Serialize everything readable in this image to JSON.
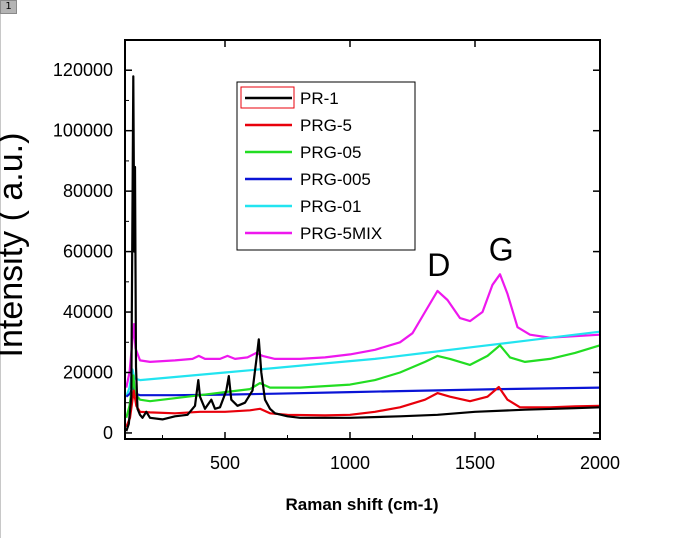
{
  "page_tab": "1",
  "chart_data": {
    "type": "line",
    "title": "",
    "xlabel": "Raman shift (cm-1)",
    "ylabel": "Intensity ( a.u.)",
    "xlim": [
      100,
      2000
    ],
    "ylim": [
      -2000,
      130000
    ],
    "xticks": [
      500,
      1000,
      1500,
      2000
    ],
    "yticks": [
      0,
      20000,
      40000,
      60000,
      80000,
      100000,
      120000
    ],
    "grid": false,
    "legend_position": "top-center",
    "annotations": [
      {
        "text": "D",
        "x": 1355,
        "y": 52000
      },
      {
        "text": "G",
        "x": 1605,
        "y": 57000
      }
    ],
    "series": [
      {
        "name": "PR-1",
        "color": "#000000",
        "points": [
          [
            105,
            600
          ],
          [
            115,
            3000
          ],
          [
            125,
            12000
          ],
          [
            133,
            118000
          ],
          [
            137,
            60000
          ],
          [
            140,
            88000
          ],
          [
            144,
            22000
          ],
          [
            150,
            8000
          ],
          [
            160,
            6000
          ],
          [
            170,
            5000
          ],
          [
            185,
            7000
          ],
          [
            200,
            5000
          ],
          [
            250,
            4500
          ],
          [
            300,
            5500
          ],
          [
            350,
            6000
          ],
          [
            380,
            9000
          ],
          [
            393,
            17500
          ],
          [
            400,
            12000
          ],
          [
            420,
            8000
          ],
          [
            445,
            11000
          ],
          [
            460,
            8000
          ],
          [
            480,
            8500
          ],
          [
            505,
            14000
          ],
          [
            515,
            18800
          ],
          [
            525,
            11000
          ],
          [
            550,
            9000
          ],
          [
            580,
            10000
          ],
          [
            610,
            14000
          ],
          [
            625,
            24000
          ],
          [
            635,
            31000
          ],
          [
            645,
            20000
          ],
          [
            660,
            11000
          ],
          [
            680,
            8000
          ],
          [
            700,
            6500
          ],
          [
            750,
            5500
          ],
          [
            800,
            5000
          ],
          [
            1000,
            5000
          ],
          [
            1200,
            5500
          ],
          [
            1350,
            6000
          ],
          [
            1500,
            7000
          ],
          [
            1700,
            7700
          ],
          [
            1900,
            8200
          ],
          [
            2000,
            8500
          ]
        ]
      },
      {
        "name": "PRG-5",
        "color": "#e8000b",
        "points": [
          [
            105,
            2000
          ],
          [
            120,
            5000
          ],
          [
            130,
            11000
          ],
          [
            135,
            14000
          ],
          [
            145,
            9000
          ],
          [
            160,
            7000
          ],
          [
            200,
            6800
          ],
          [
            300,
            6500
          ],
          [
            400,
            7000
          ],
          [
            500,
            7000
          ],
          [
            600,
            7500
          ],
          [
            640,
            8000
          ],
          [
            680,
            6500
          ],
          [
            750,
            6000
          ],
          [
            900,
            5800
          ],
          [
            1000,
            6000
          ],
          [
            1100,
            7000
          ],
          [
            1200,
            8500
          ],
          [
            1300,
            11000
          ],
          [
            1350,
            13200
          ],
          [
            1400,
            12000
          ],
          [
            1480,
            10500
          ],
          [
            1550,
            12000
          ],
          [
            1595,
            15200
          ],
          [
            1630,
            11000
          ],
          [
            1680,
            8500
          ],
          [
            1800,
            8500
          ],
          [
            1900,
            8800
          ],
          [
            2000,
            9000
          ]
        ]
      },
      {
        "name": "PRG-05",
        "color": "#22dd22",
        "points": [
          [
            105,
            5000
          ],
          [
            118,
            9000
          ],
          [
            128,
            15000
          ],
          [
            133,
            19000
          ],
          [
            140,
            13000
          ],
          [
            160,
            11000
          ],
          [
            200,
            10500
          ],
          [
            300,
            11500
          ],
          [
            400,
            12500
          ],
          [
            500,
            13500
          ],
          [
            600,
            14500
          ],
          [
            640,
            16500
          ],
          [
            680,
            15000
          ],
          [
            800,
            15000
          ],
          [
            1000,
            16000
          ],
          [
            1100,
            17500
          ],
          [
            1200,
            20000
          ],
          [
            1300,
            23500
          ],
          [
            1350,
            25500
          ],
          [
            1400,
            24500
          ],
          [
            1480,
            22500
          ],
          [
            1550,
            25500
          ],
          [
            1600,
            29000
          ],
          [
            1640,
            25000
          ],
          [
            1700,
            23500
          ],
          [
            1800,
            24500
          ],
          [
            1900,
            26500
          ],
          [
            2000,
            29000
          ]
        ]
      },
      {
        "name": "PRG-005",
        "color": "#0a14d6",
        "points": [
          [
            105,
            12000
          ],
          [
            120,
            13000
          ],
          [
            132,
            15500
          ],
          [
            140,
            13000
          ],
          [
            160,
            12500
          ],
          [
            300,
            12500
          ],
          [
            500,
            12700
          ],
          [
            700,
            13000
          ],
          [
            1000,
            13500
          ],
          [
            1300,
            14000
          ],
          [
            1600,
            14500
          ],
          [
            2000,
            15000
          ]
        ]
      },
      {
        "name": "PRG-01",
        "color": "#22e4f0",
        "points": [
          [
            105,
            12000
          ],
          [
            118,
            15000
          ],
          [
            130,
            21000
          ],
          [
            138,
            18000
          ],
          [
            160,
            17500
          ],
          [
            300,
            18500
          ],
          [
            500,
            20000
          ],
          [
            700,
            21500
          ],
          [
            900,
            23000
          ],
          [
            1100,
            24500
          ],
          [
            1300,
            26500
          ],
          [
            1500,
            28500
          ],
          [
            1700,
            30500
          ],
          [
            1900,
            32500
          ],
          [
            2000,
            33500
          ]
        ]
      },
      {
        "name": "PRG-5MIX",
        "color": "#ee18ee",
        "points": [
          [
            105,
            15000
          ],
          [
            118,
            20000
          ],
          [
            130,
            31000
          ],
          [
            136,
            36000
          ],
          [
            142,
            28000
          ],
          [
            160,
            24000
          ],
          [
            200,
            23500
          ],
          [
            300,
            24000
          ],
          [
            370,
            24500
          ],
          [
            395,
            25500
          ],
          [
            420,
            24500
          ],
          [
            480,
            24500
          ],
          [
            510,
            25500
          ],
          [
            540,
            24500
          ],
          [
            590,
            25000
          ],
          [
            625,
            26500
          ],
          [
            650,
            25500
          ],
          [
            700,
            24500
          ],
          [
            800,
            24500
          ],
          [
            900,
            25000
          ],
          [
            1000,
            26000
          ],
          [
            1100,
            27500
          ],
          [
            1200,
            30000
          ],
          [
            1250,
            33000
          ],
          [
            1300,
            40000
          ],
          [
            1350,
            47000
          ],
          [
            1390,
            44000
          ],
          [
            1440,
            38000
          ],
          [
            1480,
            37000
          ],
          [
            1530,
            40000
          ],
          [
            1570,
            49000
          ],
          [
            1600,
            52500
          ],
          [
            1630,
            46000
          ],
          [
            1670,
            35000
          ],
          [
            1720,
            32500
          ],
          [
            1800,
            31500
          ],
          [
            1900,
            32000
          ],
          [
            2000,
            32500
          ]
        ]
      }
    ]
  }
}
